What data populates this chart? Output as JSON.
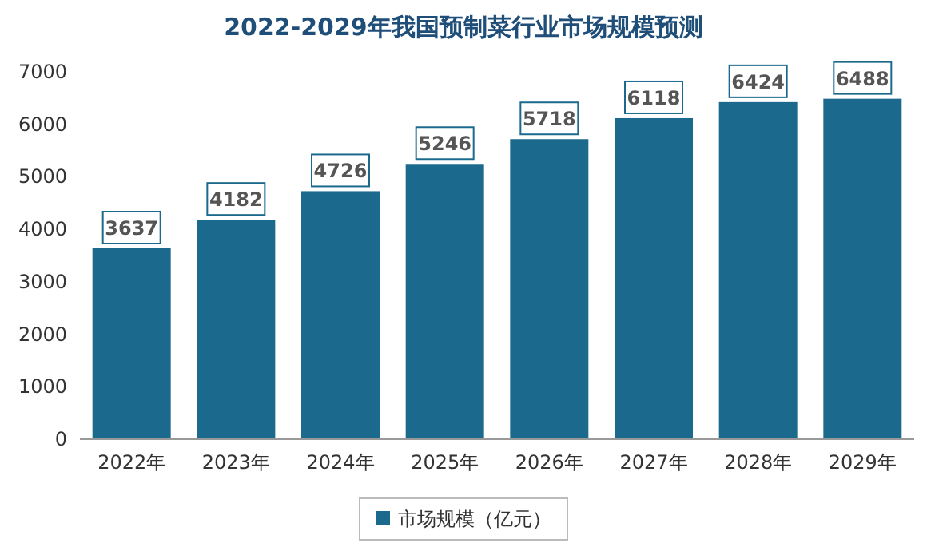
{
  "chart_data": {
    "type": "bar",
    "title": "2022-2029年我国预制菜行业市场规模预测",
    "categories": [
      "2022年",
      "2023年",
      "2024年",
      "2025年",
      "2026年",
      "2027年",
      "2028年",
      "2029年"
    ],
    "series": [
      {
        "name": "市场规模（亿元）",
        "color": "#1b6a8e",
        "values": [
          3637,
          4182,
          4726,
          5246,
          5718,
          6118,
          6424,
          6488
        ]
      }
    ],
    "ylim": [
      0,
      7000
    ],
    "yticks": [
      0,
      1000,
      2000,
      3000,
      4000,
      5000,
      6000,
      7000
    ],
    "data_labels": true,
    "legend": "bottom",
    "grid": false
  }
}
